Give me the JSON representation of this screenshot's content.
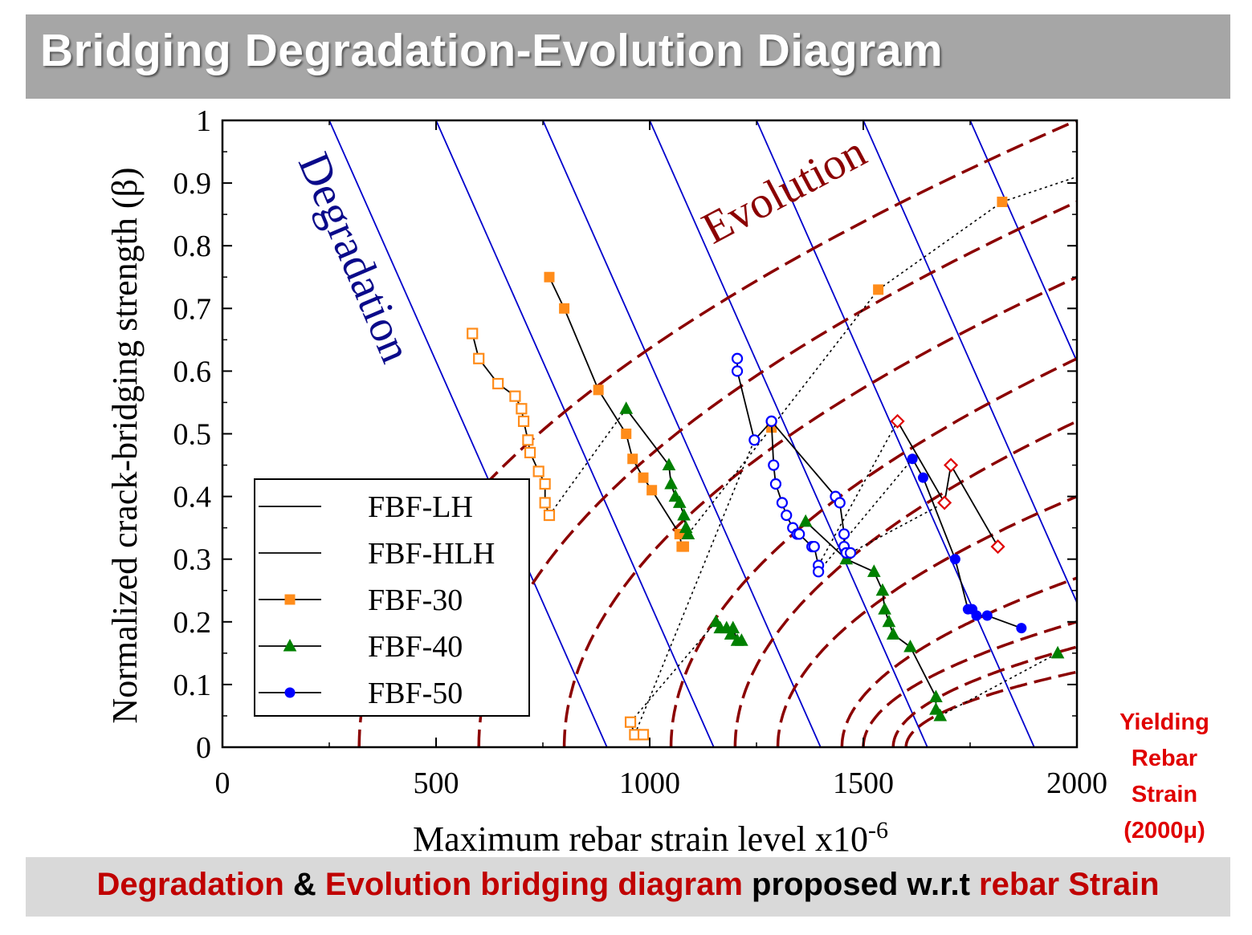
{
  "header": {
    "title": "Bridging Degradation-Evolution Diagram"
  },
  "footer": {
    "part1": "Degradation",
    "part2": " & ",
    "part3": "Evolution bridging diagram",
    "part4": " proposed w.r.t ",
    "part5": "rebar Strain"
  },
  "side_note": {
    "line1": "Yielding",
    "line2": "Rebar",
    "line3": "Strain",
    "line4": "(2000μ)"
  },
  "colors": {
    "degradation": "#0000cc",
    "evolution": "#8b0000",
    "fbf30": "#ff8c1a",
    "fbf40": "#008000",
    "fbf50": "#0000ff",
    "extra": "#e00000"
  },
  "chart_data": {
    "type": "scatter",
    "xlabel": "Maximum rebar strain level x10",
    "xlabel_sup": "-6",
    "ylabel": "Normalized crack-bridging strength (β)",
    "xlim": [
      0,
      2000
    ],
    "ylim": [
      0,
      1
    ],
    "xticks": [
      "0",
      "500",
      "1000",
      "1500",
      "2000"
    ],
    "yticks": [
      "0",
      "0.1",
      "0.2",
      "0.3",
      "0.4",
      "0.5",
      "0.6",
      "0.7",
      "0.8",
      "0.9",
      "1"
    ],
    "annotations": {
      "degradation": "Degradation",
      "evolution": "Evolution"
    },
    "legend": {
      "placement": "lower-left",
      "entries": [
        "FBF-LH",
        "FBF-HLH",
        "FBF-30",
        "FBF-40",
        "FBF-50"
      ]
    },
    "degradation_lines": [
      {
        "x_at_y0": 900,
        "x_at_y1": 250
      },
      {
        "x_at_y0": 1150,
        "x_at_y1": 500
      },
      {
        "x_at_y0": 1400,
        "x_at_y1": 750
      },
      {
        "x_at_y0": 1650,
        "x_at_y1": 1000
      },
      {
        "x_at_y0": 1900,
        "x_at_y1": 1250
      },
      {
        "x_at_y0": 2150,
        "x_at_y1": 1500
      },
      {
        "x_at_y0": 2400,
        "x_at_y1": 1750
      }
    ],
    "evolution_curves": [
      {
        "x0": 320,
        "y_at_2000": 1.0
      },
      {
        "x0": 600,
        "y_at_2000": 0.87
      },
      {
        "x0": 800,
        "y_at_2000": 0.75
      },
      {
        "x0": 1050,
        "y_at_2000": 0.62
      },
      {
        "x0": 1200,
        "y_at_2000": 0.52
      },
      {
        "x0": 1300,
        "y_at_2000": 0.4
      },
      {
        "x0": 1450,
        "y_at_2000": 0.27
      },
      {
        "x0": 1500,
        "y_at_2000": 0.2
      },
      {
        "x0": 1570,
        "y_at_2000": 0.16
      },
      {
        "x0": 1600,
        "y_at_2000": 0.12
      }
    ],
    "series": [
      {
        "name": "FBF-30",
        "marker": "square",
        "filled": true,
        "color": "#ff8c1a",
        "connect": true,
        "x": [
          765,
          800,
          880,
          945,
          960,
          985,
          1005,
          1070,
          1075,
          1080
        ],
        "y": [
          0.75,
          0.7,
          0.57,
          0.5,
          0.46,
          0.43,
          0.41,
          0.34,
          0.32,
          0.32
        ]
      },
      {
        "name": "FBF-30",
        "marker": "square",
        "filled": true,
        "color": "#ff8c1a",
        "connect": false,
        "x": [
          1285,
          1535,
          1825
        ],
        "y": [
          0.51,
          0.73,
          0.87
        ]
      },
      {
        "name": "FBF-LH",
        "marker": "square",
        "filled": false,
        "color": "#ff8c1a",
        "connect": true,
        "x": [
          585,
          600,
          645,
          685,
          700,
          705,
          715,
          720,
          740,
          755,
          755,
          765
        ],
        "y": [
          0.66,
          0.62,
          0.58,
          0.56,
          0.54,
          0.52,
          0.49,
          0.47,
          0.44,
          0.42,
          0.39,
          0.37
        ]
      },
      {
        "name": "FBF-LH",
        "marker": "square",
        "filled": false,
        "color": "#ff8c1a",
        "connect": true,
        "x": [
          955,
          965,
          985
        ],
        "y": [
          0.04,
          0.02,
          0.02
        ]
      },
      {
        "name": "FBF-40",
        "marker": "triangle",
        "filled": true,
        "color": "#008000",
        "connect": true,
        "x": [
          945,
          1045,
          1050,
          1060,
          1070,
          1080,
          1085,
          1090
        ],
        "y": [
          0.54,
          0.45,
          0.42,
          0.4,
          0.39,
          0.37,
          0.35,
          0.34
        ]
      },
      {
        "name": "FBF-40",
        "marker": "triangle",
        "filled": true,
        "color": "#008000",
        "connect": true,
        "x": [
          1155,
          1165,
          1180,
          1190,
          1195,
          1205,
          1215
        ],
        "y": [
          0.2,
          0.19,
          0.19,
          0.18,
          0.19,
          0.17,
          0.17
        ]
      },
      {
        "name": "FBF-40",
        "marker": "triangle",
        "filled": true,
        "color": "#008000",
        "connect": true,
        "x": [
          1365,
          1460,
          1525,
          1545,
          1550,
          1560,
          1570,
          1610,
          1670,
          1670,
          1680
        ],
        "y": [
          0.36,
          0.3,
          0.28,
          0.25,
          0.22,
          0.2,
          0.18,
          0.16,
          0.08,
          0.06,
          0.05
        ]
      },
      {
        "name": "FBF-40",
        "marker": "triangle",
        "filled": true,
        "color": "#008000",
        "connect": false,
        "x": [
          1955
        ],
        "y": [
          0.15
        ]
      },
      {
        "name": "FBF-HLH",
        "marker": "circle",
        "filled": false,
        "color": "#0000ff",
        "connect": true,
        "x": [
          1205,
          1205,
          1245,
          1285,
          1290,
          1295,
          1310,
          1320,
          1335,
          1345,
          1350,
          1380,
          1385,
          1395,
          1395
        ],
        "y": [
          0.62,
          0.6,
          0.49,
          0.52,
          0.45,
          0.42,
          0.39,
          0.37,
          0.35,
          0.34,
          0.34,
          0.32,
          0.32,
          0.29,
          0.28
        ]
      },
      {
        "name": "FBF-HLH",
        "marker": "circle",
        "filled": false,
        "color": "#0000ff",
        "connect": true,
        "x": [
          1285,
          1435,
          1445,
          1455,
          1455,
          1460,
          1470
        ],
        "y": [
          0.52,
          0.4,
          0.39,
          0.34,
          0.32,
          0.31,
          0.31
        ]
      },
      {
        "name": "FBF-50",
        "marker": "circle",
        "filled": true,
        "color": "#0000ff",
        "connect": true,
        "x": [
          1615,
          1640,
          1715,
          1745,
          1755,
          1765,
          1790,
          1870
        ],
        "y": [
          0.46,
          0.43,
          0.3,
          0.22,
          0.22,
          0.21,
          0.21,
          0.19
        ]
      },
      {
        "name": "",
        "marker": "diamond",
        "filled": false,
        "color": "#e00000",
        "connect": true,
        "x": [
          1580,
          1690,
          1705,
          1815
        ],
        "y": [
          0.52,
          0.39,
          0.45,
          0.32
        ]
      }
    ],
    "dotted_links": [
      {
        "from": [
          765,
          0.37
        ],
        "to": [
          945,
          0.54
        ]
      },
      {
        "from": [
          955,
          0.04
        ],
        "to": [
          1155,
          0.2
        ]
      },
      {
        "from": [
          965,
          0.02
        ],
        "to": [
          1245,
          0.49
        ]
      },
      {
        "from": [
          1090,
          0.34
        ],
        "to": [
          1285,
          0.51
        ]
      },
      {
        "from": [
          1285,
          0.51
        ],
        "to": [
          1535,
          0.73
        ]
      },
      {
        "from": [
          1535,
          0.73
        ],
        "to": [
          1825,
          0.87
        ]
      },
      {
        "from": [
          1825,
          0.87
        ],
        "to": [
          2000,
          0.91
        ]
      },
      {
        "from": [
          1395,
          0.29
        ],
        "to": [
          1580,
          0.52
        ]
      },
      {
        "from": [
          1395,
          0.28
        ],
        "to": [
          1615,
          0.46
        ]
      },
      {
        "from": [
          1470,
          0.31
        ],
        "to": [
          1690,
          0.39
        ]
      },
      {
        "from": [
          1680,
          0.05
        ],
        "to": [
          1955,
          0.15
        ]
      }
    ]
  }
}
